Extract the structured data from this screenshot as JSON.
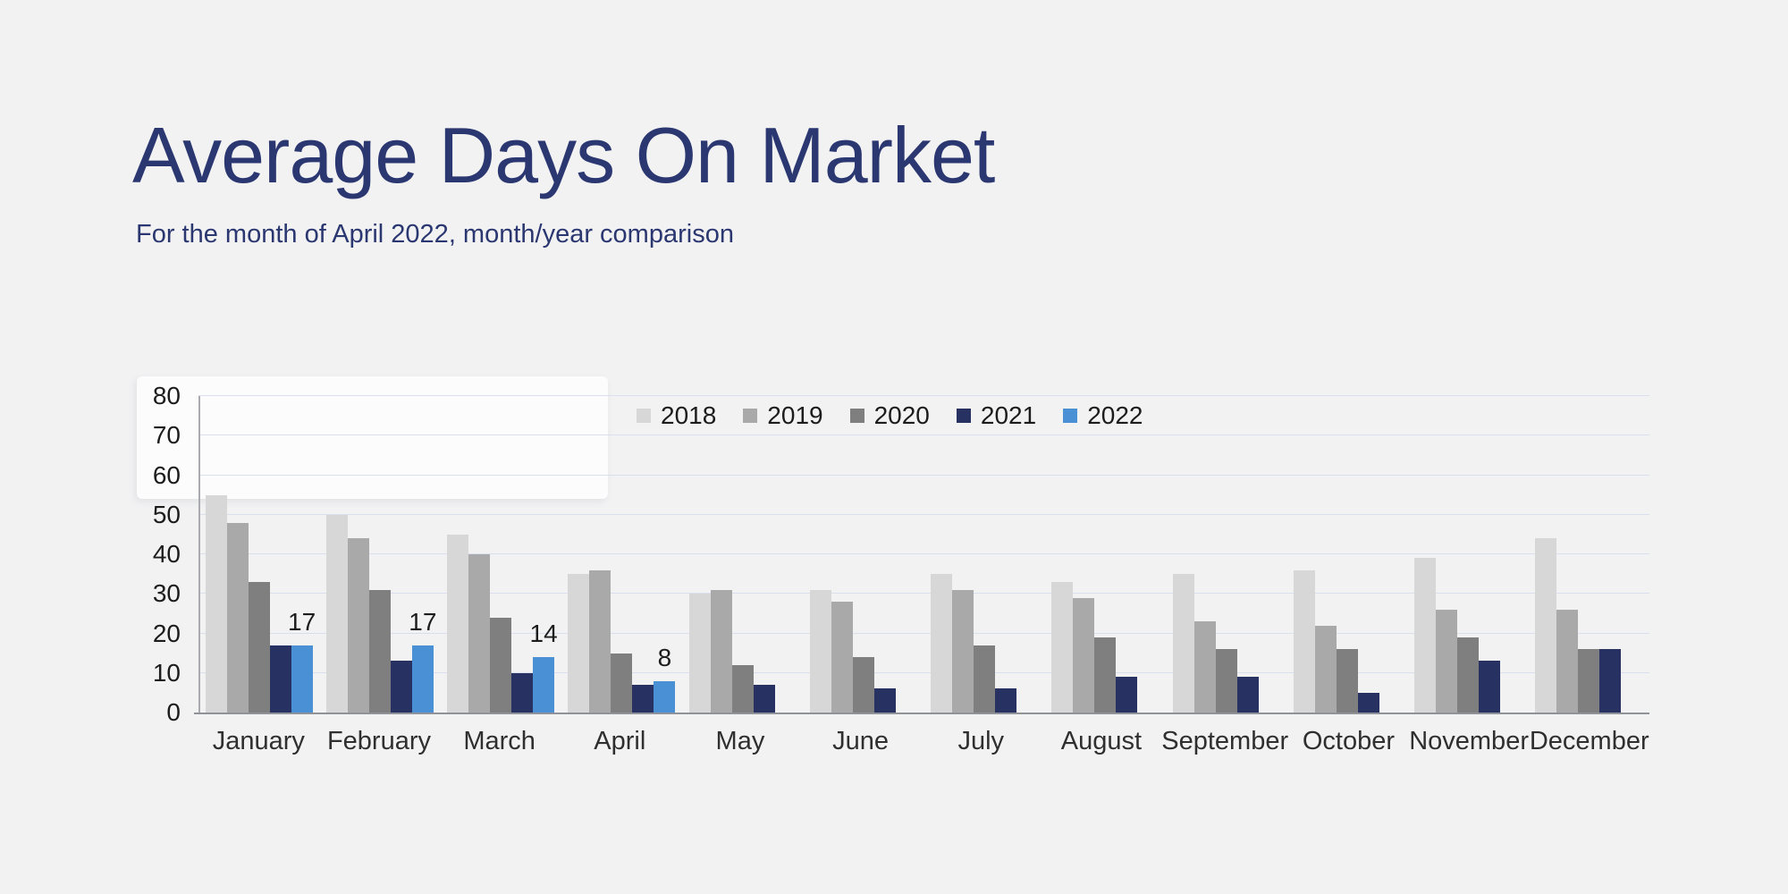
{
  "slide": {
    "title": "Average Days On Market",
    "subtitle": "For the month of April 2022, month/year comparison"
  },
  "colors": {
    "background": "#f2f2f3",
    "title_text": "#2b3770",
    "grid_line": "#d9dfec",
    "axis_line": "#8f9399",
    "tick_text": "#1c1c1c",
    "month_text": "#2f2f2f"
  },
  "chart_data": {
    "type": "bar",
    "title": "Average Days On Market",
    "subtitle": "For the month of April 2022, month/year comparison",
    "categories": [
      "January",
      "February",
      "March",
      "April",
      "May",
      "June",
      "July",
      "August",
      "September",
      "October",
      "November",
      "December"
    ],
    "series": [
      {
        "name": "2018",
        "color": "#d7d7d7",
        "values": [
          55,
          50,
          45,
          35,
          30,
          31,
          35,
          33,
          35,
          36,
          39,
          44
        ]
      },
      {
        "name": "2019",
        "color": "#a9a9a9",
        "values": [
          48,
          44,
          40,
          36,
          31,
          28,
          31,
          29,
          23,
          22,
          26,
          26
        ]
      },
      {
        "name": "2020",
        "color": "#7f7f7f",
        "values": [
          33,
          31,
          24,
          15,
          12,
          14,
          17,
          19,
          16,
          16,
          19,
          16
        ]
      },
      {
        "name": "2021",
        "color": "#273162",
        "values": [
          17,
          13,
          10,
          7,
          7,
          6,
          6,
          9,
          9,
          5,
          13,
          16
        ]
      },
      {
        "name": "2022",
        "color": "#4a90d5",
        "values": [
          17,
          17,
          14,
          8,
          null,
          null,
          null,
          null,
          null,
          null,
          null,
          null
        ],
        "show_data_labels": true
      }
    ],
    "ylim": [
      0,
      80
    ],
    "yticks": [
      0,
      10,
      20,
      30,
      40,
      50,
      60,
      70,
      80
    ],
    "grid": "horizontal",
    "legend": {
      "position": "top-center",
      "entries": [
        "2018",
        "2019",
        "2020",
        "2021",
        "2022"
      ]
    }
  }
}
